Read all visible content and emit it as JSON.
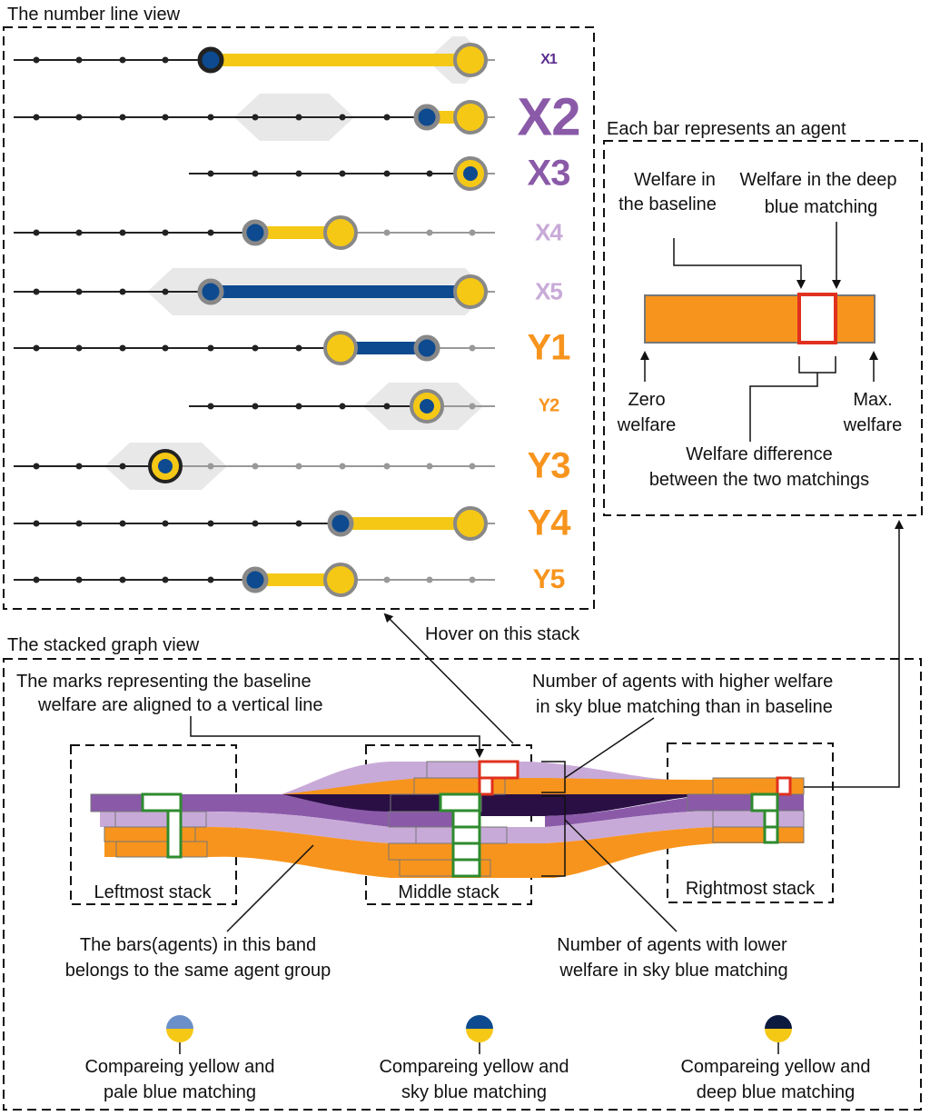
{
  "number_line_view": {
    "title": "The number line view",
    "agents": [
      {
        "label": "X1",
        "color": "#5b2d8e"
      },
      {
        "label": "X2",
        "color": "#8a5aa8"
      },
      {
        "label": "X3",
        "color": "#8a5aa8"
      },
      {
        "label": "X4",
        "color": "#c8aad8"
      },
      {
        "label": "X5",
        "color": "#c8aad8"
      },
      {
        "label": "Y1",
        "color": "#f7941d"
      },
      {
        "label": "Y2",
        "color": "#f7941d"
      },
      {
        "label": "Y3",
        "color": "#f7941d"
      },
      {
        "label": "Y4",
        "color": "#f7941d"
      },
      {
        "label": "Y5",
        "color": "#f7941d"
      }
    ]
  },
  "bar_legend": {
    "title": "Each bar represents an agent",
    "welfare_baseline": [
      "Welfare in",
      "the baseline"
    ],
    "welfare_deep": [
      "Welfare in the deep",
      "blue matching"
    ],
    "zero_welfare": [
      "Zero",
      "welfare"
    ],
    "max_welfare": [
      "Max.",
      "welfare"
    ],
    "difference": [
      "Welfare difference",
      "between the two matchings"
    ]
  },
  "stacked_graph_view": {
    "title": "The stacked graph view",
    "hover_note": "Hover on this stack",
    "aligned_note": [
      "The marks representing the baseline",
      "welfare are aligned to a vertical line"
    ],
    "higher_note": [
      "Number of agents with higher welfare",
      "in sky blue matching than in baseline"
    ],
    "lower_note": [
      "Number of agents with lower",
      "welfare in sky blue matching"
    ],
    "band_note": [
      "The bars(agents) in this band",
      "belongs to the same agent group"
    ],
    "leftmost": "Leftmost stack",
    "middle": "Middle stack",
    "rightmost": "Rightmost stack"
  },
  "matching_legend": [
    {
      "label": [
        "Compareing yellow and",
        "pale blue matching"
      ],
      "top_color": "#6b8fc8",
      "bottom_color": "#f5c816"
    },
    {
      "label": [
        "Compareing yellow and",
        "sky blue matching"
      ],
      "top_color": "#0d4a8f",
      "bottom_color": "#f5c816"
    },
    {
      "label": [
        "Compareing yellow and",
        "deep blue matching"
      ],
      "top_color": "#0b1a3e",
      "bottom_color": "#f5c816"
    }
  ],
  "colors": {
    "yellow": "#f5c816",
    "sky_blue": "#0d4a8f",
    "orange": "#f7941d",
    "purple": "#8a5aa8",
    "light_purple": "#c8aad8",
    "deep_purple": "#2a0f45",
    "red_highlight": "#e0301e",
    "green_highlight": "#2e8b2e"
  }
}
